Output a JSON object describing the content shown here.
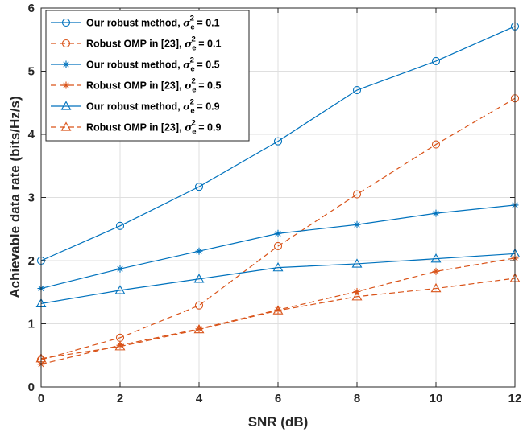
{
  "chart_data": {
    "type": "line",
    "xlabel": "SNR (dB)",
    "ylabel": "Achievable data rate (bits/Hz/s)",
    "xlim": [
      0,
      12
    ],
    "ylim": [
      0,
      6
    ],
    "xticks": [
      0,
      2,
      4,
      6,
      8,
      10,
      12
    ],
    "yticks": [
      0,
      1,
      2,
      3,
      4,
      5,
      6
    ],
    "grid": true,
    "legend_position": "top-left",
    "x": [
      0,
      2,
      4,
      6,
      8,
      10,
      12
    ],
    "series": [
      {
        "name": "Our robust method, σe2 = 0.1",
        "text": "Our robust method, ",
        "noise": "0.1",
        "color": "#0072BD",
        "dash": "solid",
        "marker": "circle",
        "values": [
          2.0,
          2.55,
          3.17,
          3.89,
          4.7,
          5.16,
          5.71
        ]
      },
      {
        "name": "Robust OMP in [23], σe2 = 0.1",
        "text": "Robust OMP in [23], ",
        "noise": "0.1",
        "color": "#D95319",
        "dash": "dashed",
        "marker": "circle",
        "values": [
          0.43,
          0.78,
          1.29,
          2.23,
          3.05,
          3.84,
          4.57
        ]
      },
      {
        "name": "Our robust method, σe2 = 0.5",
        "text": "Our robust method, ",
        "noise": "0.5",
        "color": "#0072BD",
        "dash": "solid",
        "marker": "asterisk",
        "values": [
          1.56,
          1.87,
          2.15,
          2.43,
          2.57,
          2.75,
          2.88
        ]
      },
      {
        "name": "Robust OMP in [23], σe2 = 0.5",
        "text": "Robust OMP in [23], ",
        "noise": "0.5",
        "color": "#D95319",
        "dash": "dashed",
        "marker": "asterisk",
        "values": [
          0.36,
          0.66,
          0.92,
          1.22,
          1.51,
          1.83,
          2.04
        ]
      },
      {
        "name": "Our robust method, σe2 = 0.9",
        "text": "Our robust method, ",
        "noise": "0.9",
        "color": "#0072BD",
        "dash": "solid",
        "marker": "triangle",
        "values": [
          1.32,
          1.53,
          1.71,
          1.89,
          1.95,
          2.03,
          2.11
        ]
      },
      {
        "name": "Robust OMP in [23], σe2 = 0.9",
        "text": "Robust OMP in [23], ",
        "noise": "0.9",
        "color": "#D95319",
        "dash": "dashed",
        "marker": "triangle",
        "values": [
          0.45,
          0.64,
          0.91,
          1.21,
          1.43,
          1.56,
          1.72
        ]
      }
    ],
    "legend_symbol": "σ",
    "legend_sub": "e",
    "legend_sup": "2",
    "legend_eq": " = "
  }
}
